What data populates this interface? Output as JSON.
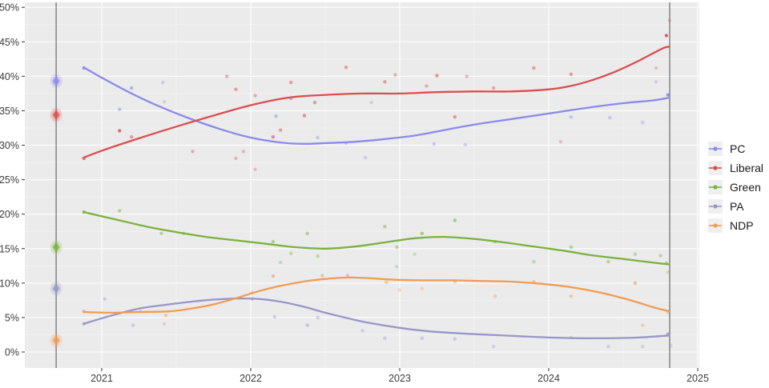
{
  "page": {
    "background": "#ffffff"
  },
  "axes": {
    "x_tick_labels": [
      "2021",
      "2022",
      "2023",
      "2024",
      "2025"
    ],
    "x_tick_values": [
      2021,
      2022,
      2023,
      2024,
      2025
    ],
    "y_tick_labels": [
      "0%",
      "5%",
      "10%",
      "15%",
      "20%",
      "25%",
      "30%",
      "35%",
      "40%",
      "45%",
      "50%"
    ],
    "y_tick_values": [
      0,
      5,
      10,
      15,
      20,
      25,
      30,
      35,
      40,
      45,
      50
    ],
    "tick_color": "#333333",
    "label_color": "#3c3c3c"
  },
  "plot_style": {
    "panel_color": "#ebebeb",
    "grid_major_color": "#fbfbfb",
    "grid_minor_color": "#f3f3f3",
    "election_line_color": "#6a6a6a"
  },
  "legend": {
    "position": "right"
  },
  "chart_data": {
    "type": "line",
    "title": "",
    "xlabel": "",
    "ylabel": "",
    "xlim": [
      2020.48,
      2025.01
    ],
    "ylim": [
      0,
      50
    ],
    "grid": true,
    "legend_position": "right",
    "election_date_lines": [
      2020.694,
      2024.812
    ],
    "series": [
      {
        "name": "PC",
        "color": "#8a8aec",
        "election_2020": {
          "t": 2020.694,
          "value": 39.3
        },
        "trend": [
          [
            2020.88,
            41.3
          ],
          [
            2021.0,
            39.8
          ],
          [
            2021.2,
            37.5
          ],
          [
            2021.4,
            35.5
          ],
          [
            2021.6,
            33.8
          ],
          [
            2021.8,
            32.3
          ],
          [
            2022.0,
            31.1
          ],
          [
            2022.2,
            30.4
          ],
          [
            2022.35,
            30.2
          ],
          [
            2022.5,
            30.3
          ],
          [
            2022.7,
            30.5
          ],
          [
            2022.9,
            30.9
          ],
          [
            2023.1,
            31.4
          ],
          [
            2023.3,
            32.2
          ],
          [
            2023.5,
            33.0
          ],
          [
            2023.75,
            33.8
          ],
          [
            2024.0,
            34.6
          ],
          [
            2024.25,
            35.4
          ],
          [
            2024.5,
            36.1
          ],
          [
            2024.7,
            36.5
          ],
          [
            2024.81,
            36.9
          ]
        ],
        "polls": [
          [
            2020.88,
            41.2,
            0.8
          ],
          [
            2021.12,
            35.2,
            0.5
          ],
          [
            2021.2,
            38.3,
            0.6
          ],
          [
            2021.41,
            39.1,
            0.35
          ],
          [
            2021.42,
            36.3,
            0.3
          ],
          [
            2022.17,
            34.2,
            0.5
          ],
          [
            2022.27,
            36.8,
            0.7
          ],
          [
            2022.45,
            31.1,
            0.4
          ],
          [
            2022.64,
            30.3,
            0.4
          ],
          [
            2022.77,
            28.2,
            0.35
          ],
          [
            2022.81,
            36.2,
            0.3
          ],
          [
            2023.23,
            30.2,
            0.4
          ],
          [
            2023.44,
            30.1,
            0.35
          ],
          [
            2024.15,
            34.1,
            0.4
          ],
          [
            2024.41,
            34.0,
            0.4
          ],
          [
            2024.63,
            33.3,
            0.35
          ],
          [
            2024.72,
            39.2,
            0.3
          ],
          [
            2024.8,
            37.3,
            0.85
          ]
        ]
      },
      {
        "name": "Liberal",
        "color": "#dc4e4e",
        "election_2020": {
          "t": 2020.694,
          "value": 34.4
        },
        "trend": [
          [
            2020.88,
            28.2
          ],
          [
            2021.0,
            29.2
          ],
          [
            2021.25,
            31.0
          ],
          [
            2021.5,
            32.7
          ],
          [
            2021.75,
            34.3
          ],
          [
            2022.0,
            35.8
          ],
          [
            2022.25,
            36.9
          ],
          [
            2022.5,
            37.3
          ],
          [
            2022.75,
            37.5
          ],
          [
            2023.0,
            37.5
          ],
          [
            2023.25,
            37.7
          ],
          [
            2023.5,
            37.8
          ],
          [
            2023.75,
            37.8
          ],
          [
            2024.0,
            38.1
          ],
          [
            2024.15,
            38.6
          ],
          [
            2024.3,
            39.5
          ],
          [
            2024.45,
            40.7
          ],
          [
            2024.6,
            42.2
          ],
          [
            2024.76,
            44.0
          ],
          [
            2024.81,
            44.3
          ]
        ],
        "polls": [
          [
            2020.88,
            28.1,
            0.7
          ],
          [
            2021.12,
            32.1,
            0.8
          ],
          [
            2021.2,
            31.2,
            0.5
          ],
          [
            2021.61,
            29.1,
            0.4
          ],
          [
            2021.84,
            40.0,
            0.4
          ],
          [
            2021.9,
            38.1,
            0.5
          ],
          [
            2021.9,
            28.1,
            0.35
          ],
          [
            2021.95,
            29.1,
            0.35
          ],
          [
            2022.03,
            37.2,
            0.4
          ],
          [
            2022.03,
            26.5,
            0.3
          ],
          [
            2022.15,
            31.2,
            0.6
          ],
          [
            2022.2,
            32.2,
            0.5
          ],
          [
            2022.27,
            39.1,
            0.5
          ],
          [
            2022.36,
            34.3,
            0.6
          ],
          [
            2022.43,
            36.2,
            0.5
          ],
          [
            2022.64,
            41.3,
            0.5
          ],
          [
            2022.9,
            39.2,
            0.5
          ],
          [
            2022.97,
            40.2,
            0.4
          ],
          [
            2023.18,
            38.6,
            0.4
          ],
          [
            2023.25,
            40.1,
            0.6
          ],
          [
            2023.37,
            34.1,
            0.55
          ],
          [
            2023.45,
            40.0,
            0.35
          ],
          [
            2023.63,
            38.3,
            0.45
          ],
          [
            2023.9,
            41.2,
            0.5
          ],
          [
            2024.08,
            30.5,
            0.3
          ],
          [
            2024.15,
            40.3,
            0.5
          ],
          [
            2024.72,
            41.2,
            0.3
          ],
          [
            2024.79,
            45.9,
            0.85
          ],
          [
            2024.81,
            48.1,
            0.3
          ]
        ]
      },
      {
        "name": "Green",
        "color": "#7ab23f",
        "election_2020": {
          "t": 2020.694,
          "value": 15.2
        },
        "trend": [
          [
            2020.88,
            20.3
          ],
          [
            2021.1,
            19.2
          ],
          [
            2021.3,
            18.2
          ],
          [
            2021.5,
            17.4
          ],
          [
            2021.7,
            16.7
          ],
          [
            2021.9,
            16.2
          ],
          [
            2022.1,
            15.7
          ],
          [
            2022.3,
            15.2
          ],
          [
            2022.5,
            15.0
          ],
          [
            2022.7,
            15.3
          ],
          [
            2022.9,
            15.9
          ],
          [
            2023.1,
            16.5
          ],
          [
            2023.3,
            16.7
          ],
          [
            2023.5,
            16.4
          ],
          [
            2023.7,
            15.9
          ],
          [
            2023.9,
            15.3
          ],
          [
            2024.1,
            14.7
          ],
          [
            2024.3,
            14.0
          ],
          [
            2024.5,
            13.5
          ],
          [
            2024.65,
            13.1
          ],
          [
            2024.81,
            12.7
          ]
        ],
        "polls": [
          [
            2020.88,
            20.3,
            0.7
          ],
          [
            2021.12,
            20.5,
            0.5
          ],
          [
            2021.4,
            17.2,
            0.45
          ],
          [
            2021.55,
            17.2,
            0.4
          ],
          [
            2022.15,
            16.0,
            0.5
          ],
          [
            2022.2,
            13.0,
            0.35
          ],
          [
            2022.27,
            14.3,
            0.4
          ],
          [
            2022.38,
            17.2,
            0.5
          ],
          [
            2022.45,
            13.9,
            0.4
          ],
          [
            2022.9,
            18.2,
            0.5
          ],
          [
            2022.98,
            15.2,
            0.45
          ],
          [
            2022.98,
            12.4,
            0.3
          ],
          [
            2023.1,
            14.2,
            0.3
          ],
          [
            2023.15,
            17.2,
            0.6
          ],
          [
            2023.37,
            19.1,
            0.6
          ],
          [
            2023.64,
            16.0,
            0.45
          ],
          [
            2023.9,
            13.1,
            0.4
          ],
          [
            2024.15,
            15.2,
            0.5
          ],
          [
            2024.4,
            13.1,
            0.45
          ],
          [
            2024.58,
            14.2,
            0.4
          ],
          [
            2024.75,
            14.0,
            0.4
          ],
          [
            2024.79,
            12.9,
            0.5
          ],
          [
            2024.8,
            11.6,
            0.25
          ]
        ]
      },
      {
        "name": "PA",
        "color": "#9897c8",
        "election_2020": {
          "t": 2020.694,
          "value": 9.2
        },
        "trend": [
          [
            2020.88,
            4.1
          ],
          [
            2021.05,
            5.2
          ],
          [
            2021.25,
            6.3
          ],
          [
            2021.45,
            6.9
          ],
          [
            2021.6,
            7.3
          ],
          [
            2021.75,
            7.6
          ],
          [
            2021.9,
            7.75
          ],
          [
            2022.05,
            7.7
          ],
          [
            2022.2,
            7.3
          ],
          [
            2022.35,
            6.6
          ],
          [
            2022.5,
            5.7
          ],
          [
            2022.65,
            4.9
          ],
          [
            2022.8,
            4.2
          ],
          [
            2023.0,
            3.5
          ],
          [
            2023.2,
            3.0
          ],
          [
            2023.4,
            2.7
          ],
          [
            2023.6,
            2.5
          ],
          [
            2023.8,
            2.3
          ],
          [
            2024.0,
            2.1
          ],
          [
            2024.2,
            2.0
          ],
          [
            2024.4,
            2.0
          ],
          [
            2024.6,
            2.1
          ],
          [
            2024.81,
            2.4
          ]
        ],
        "polls": [
          [
            2020.88,
            4.1,
            0.6
          ],
          [
            2021.02,
            7.7,
            0.4
          ],
          [
            2021.21,
            3.9,
            0.4
          ],
          [
            2022.01,
            7.7,
            0.5
          ],
          [
            2022.16,
            5.1,
            0.4
          ],
          [
            2022.38,
            3.9,
            0.45
          ],
          [
            2022.45,
            5.0,
            0.4
          ],
          [
            2022.75,
            3.1,
            0.4
          ],
          [
            2022.9,
            2.0,
            0.4
          ],
          [
            2023.15,
            2.0,
            0.4
          ],
          [
            2023.37,
            1.9,
            0.4
          ],
          [
            2023.63,
            0.8,
            0.35
          ],
          [
            2024.15,
            2.1,
            0.4
          ],
          [
            2024.4,
            0.8,
            0.35
          ],
          [
            2024.63,
            0.8,
            0.35
          ],
          [
            2024.8,
            2.6,
            0.75
          ],
          [
            2024.82,
            0.9,
            0.3
          ]
        ]
      },
      {
        "name": "NDP",
        "color": "#f19c52",
        "election_2020": {
          "t": 2020.694,
          "value": 1.7
        },
        "trend": [
          [
            2020.88,
            5.8
          ],
          [
            2021.05,
            5.7
          ],
          [
            2021.25,
            5.8
          ],
          [
            2021.45,
            5.9
          ],
          [
            2021.6,
            6.3
          ],
          [
            2021.75,
            6.9
          ],
          [
            2021.9,
            7.8
          ],
          [
            2022.05,
            8.8
          ],
          [
            2022.2,
            9.6
          ],
          [
            2022.35,
            10.2
          ],
          [
            2022.5,
            10.6
          ],
          [
            2022.65,
            10.8
          ],
          [
            2022.8,
            10.7
          ],
          [
            2022.95,
            10.5
          ],
          [
            2023.15,
            10.4
          ],
          [
            2023.35,
            10.4
          ],
          [
            2023.55,
            10.3
          ],
          [
            2023.75,
            10.2
          ],
          [
            2023.95,
            9.9
          ],
          [
            2024.15,
            9.4
          ],
          [
            2024.35,
            8.6
          ],
          [
            2024.55,
            7.5
          ],
          [
            2024.7,
            6.5
          ],
          [
            2024.81,
            5.9
          ]
        ],
        "polls": [
          [
            2020.88,
            5.9,
            0.6
          ],
          [
            2021.26,
            5.9,
            0.4
          ],
          [
            2021.42,
            4.1,
            0.4
          ],
          [
            2021.43,
            5.3,
            0.5
          ],
          [
            2022.01,
            8.6,
            0.5
          ],
          [
            2022.15,
            11.0,
            0.6
          ],
          [
            2022.48,
            11.1,
            0.5
          ],
          [
            2022.65,
            11.1,
            0.5
          ],
          [
            2022.91,
            10.1,
            0.5
          ],
          [
            2023.0,
            9.0,
            0.3
          ],
          [
            2023.15,
            9.2,
            0.3
          ],
          [
            2023.37,
            10.2,
            0.5
          ],
          [
            2023.64,
            8.1,
            0.4
          ],
          [
            2023.9,
            10.2,
            0.45
          ],
          [
            2024.15,
            8.1,
            0.45
          ],
          [
            2024.58,
            10.0,
            0.6
          ],
          [
            2024.63,
            3.9,
            0.4
          ],
          [
            2024.8,
            5.8,
            0.5
          ]
        ]
      }
    ]
  }
}
